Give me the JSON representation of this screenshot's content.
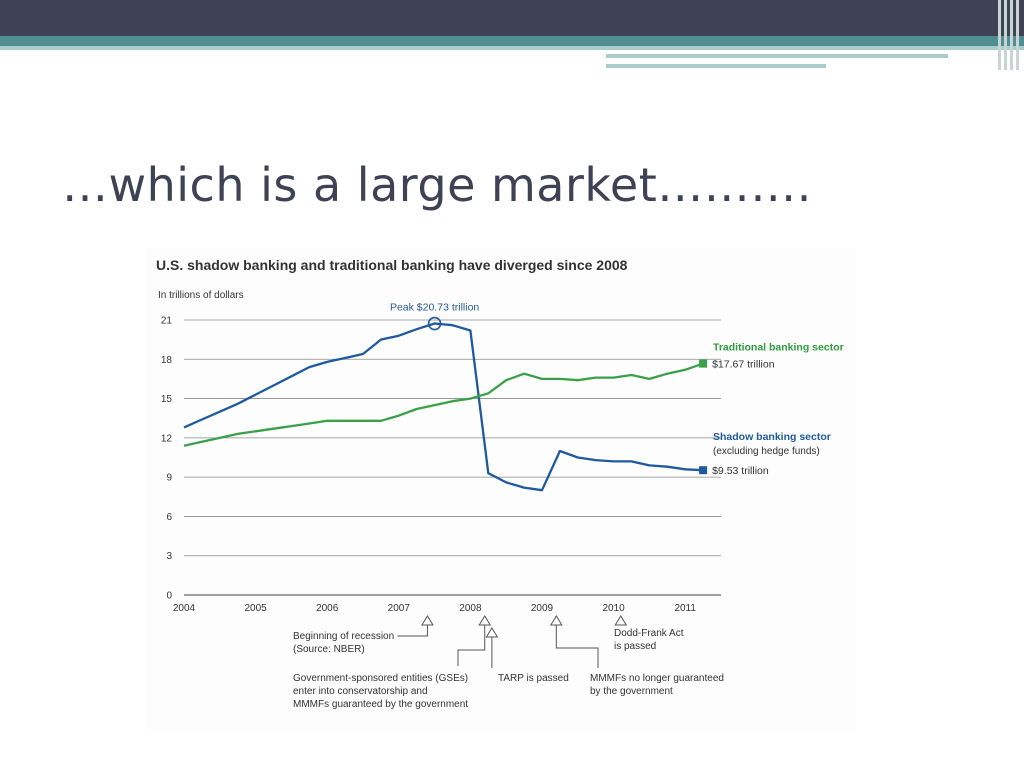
{
  "slide": {
    "title": "…which is  a large market………."
  },
  "colors": {
    "shadow_series": "#1f5a9e",
    "traditional_series": "#3aa04a",
    "topbar": "#3f4254",
    "teal": "#4f8f91"
  },
  "chart_data": {
    "type": "line",
    "title": "U.S. shadow banking and traditional banking have diverged since 2008",
    "unit_label": "In trillions of dollars",
    "xlabel": "",
    "ylabel": "",
    "x_ticks": [
      "2004",
      "2005",
      "2006",
      "2007",
      "2008",
      "2009",
      "2010",
      "2011"
    ],
    "y_ticks": [
      "0",
      "3",
      "6",
      "9",
      "12",
      "15",
      "18",
      "21"
    ],
    "xlim": [
      2004,
      2011.5
    ],
    "ylim": [
      0,
      21
    ],
    "grid": true,
    "series": [
      {
        "name": "Shadow banking sector",
        "subtitle": "(excluding hedge funds)",
        "end_value_label": "$9.53 trillion",
        "points": [
          [
            2004.0,
            12.8
          ],
          [
            2004.25,
            13.4
          ],
          [
            2004.5,
            14.0
          ],
          [
            2004.75,
            14.6
          ],
          [
            2005.0,
            15.3
          ],
          [
            2005.25,
            16.0
          ],
          [
            2005.5,
            16.7
          ],
          [
            2005.75,
            17.4
          ],
          [
            2006.0,
            17.8
          ],
          [
            2006.25,
            18.1
          ],
          [
            2006.5,
            18.4
          ],
          [
            2006.75,
            19.5
          ],
          [
            2007.0,
            19.8
          ],
          [
            2007.25,
            20.3
          ],
          [
            2007.5,
            20.73
          ],
          [
            2007.75,
            20.6
          ],
          [
            2008.0,
            20.2
          ],
          [
            2008.25,
            9.3
          ],
          [
            2008.5,
            8.6
          ],
          [
            2008.75,
            8.2
          ],
          [
            2009.0,
            8.0
          ],
          [
            2009.25,
            11.0
          ],
          [
            2009.5,
            10.5
          ],
          [
            2009.75,
            10.3
          ],
          [
            2010.0,
            10.2
          ],
          [
            2010.25,
            10.2
          ],
          [
            2010.5,
            9.9
          ],
          [
            2010.75,
            9.8
          ],
          [
            2011.0,
            9.6
          ],
          [
            2011.25,
            9.53
          ]
        ]
      },
      {
        "name": "Traditional banking sector",
        "end_value_label": "$17.67 trillion",
        "points": [
          [
            2004.0,
            11.4
          ],
          [
            2004.25,
            11.7
          ],
          [
            2004.5,
            12.0
          ],
          [
            2004.75,
            12.3
          ],
          [
            2005.0,
            12.5
          ],
          [
            2005.25,
            12.7
          ],
          [
            2005.5,
            12.9
          ],
          [
            2005.75,
            13.1
          ],
          [
            2006.0,
            13.3
          ],
          [
            2006.25,
            13.3
          ],
          [
            2006.5,
            13.3
          ],
          [
            2006.75,
            13.3
          ],
          [
            2007.0,
            13.7
          ],
          [
            2007.25,
            14.2
          ],
          [
            2007.5,
            14.5
          ],
          [
            2007.75,
            14.8
          ],
          [
            2008.0,
            15.0
          ],
          [
            2008.25,
            15.4
          ],
          [
            2008.5,
            16.4
          ],
          [
            2008.75,
            16.9
          ],
          [
            2009.0,
            16.5
          ],
          [
            2009.25,
            16.5
          ],
          [
            2009.5,
            16.4
          ],
          [
            2009.75,
            16.6
          ],
          [
            2010.0,
            16.6
          ],
          [
            2010.25,
            16.8
          ],
          [
            2010.5,
            16.5
          ],
          [
            2010.75,
            16.9
          ],
          [
            2011.0,
            17.2
          ],
          [
            2011.25,
            17.67
          ]
        ]
      }
    ],
    "peak": {
      "x": 2007.5,
      "y": 20.73,
      "label": "Peak $20.73 trillion"
    },
    "annotations": [
      {
        "x": 2007.4,
        "lines": [
          "Beginning of recession",
          "(Source: NBER)"
        ]
      },
      {
        "x": 2008.2,
        "lines": [
          "Government-sponsored entities (GSEs)",
          "enter into conservatorship and",
          "MMMFs guaranteed by the government"
        ]
      },
      {
        "x": 2008.3,
        "lines": [
          "TARP is passed"
        ]
      },
      {
        "x": 2009.2,
        "lines": [
          "MMMFs no longer guaranteed",
          "by the government"
        ]
      },
      {
        "x": 2010.1,
        "lines": [
          "Dodd-Frank Act",
          "is passed"
        ]
      }
    ]
  }
}
